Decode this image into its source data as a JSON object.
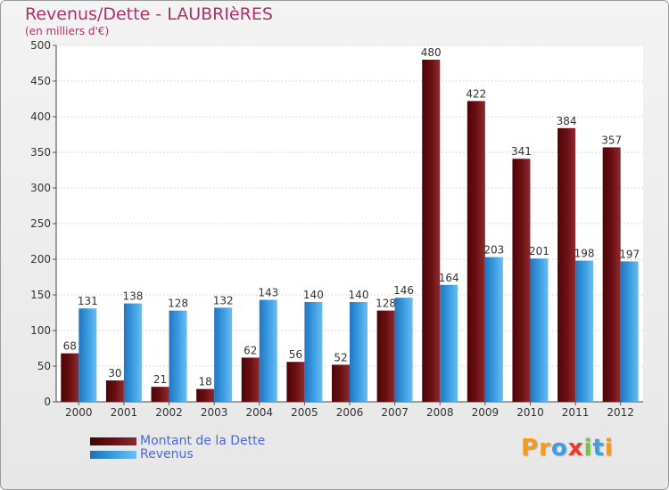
{
  "header": {
    "title": "Revenus/Dette - LAUBRIèRES",
    "subtitle": "(en milliers d'€)"
  },
  "legend": {
    "items": [
      {
        "label": "Montant de la Dette",
        "color": "#6b0e12"
      },
      {
        "label": "Revenus",
        "color": "#3a9be0"
      }
    ]
  },
  "logo": {
    "letters": [
      "P",
      "r",
      "o",
      "x",
      "i",
      "t",
      "i"
    ],
    "colors": [
      "#f29b1e",
      "#f29b1e",
      "#3c9ee6",
      "#e63c2e",
      "#7cc242",
      "#3c9ee6",
      "#f29b1e"
    ]
  },
  "chart_data": {
    "type": "bar",
    "title": "Revenus/Dette - LAUBRIèRES",
    "subtitle": "(en milliers d'€)",
    "categories": [
      "2000",
      "2001",
      "2002",
      "2003",
      "2004",
      "2005",
      "2006",
      "2007",
      "2008",
      "2009",
      "2010",
      "2011",
      "2012"
    ],
    "series": [
      {
        "name": "Montant de la Dette",
        "color": "#6b0e12",
        "values": [
          68,
          30,
          21,
          18,
          62,
          56,
          52,
          128,
          480,
          422,
          341,
          384,
          357
        ]
      },
      {
        "name": "Revenus",
        "color": "#3a9be0",
        "values": [
          131,
          138,
          128,
          132,
          143,
          140,
          140,
          146,
          164,
          203,
          201,
          198,
          197
        ]
      }
    ],
    "ylim": [
      0,
      500
    ],
    "yticks": [
      0,
      50,
      100,
      150,
      200,
      250,
      300,
      350,
      400,
      450,
      500
    ],
    "grid": true,
    "legend_position": "bottom-left"
  }
}
